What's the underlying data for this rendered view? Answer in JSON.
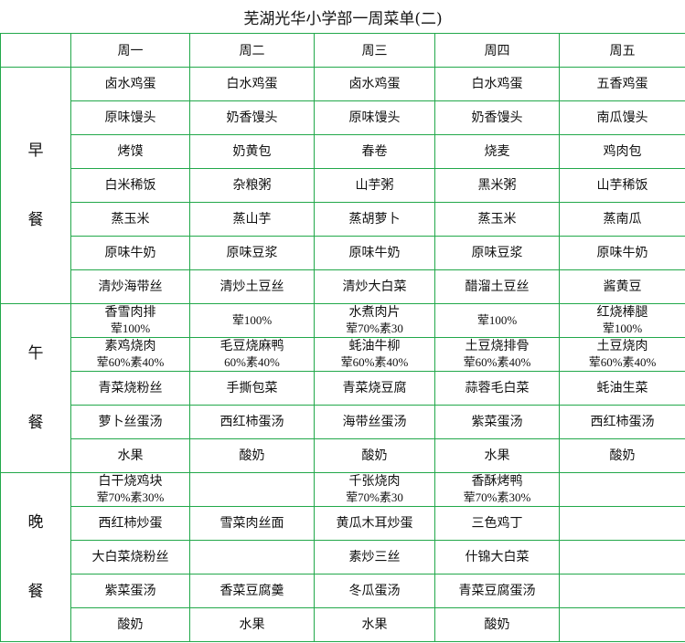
{
  "title": "芜湖光华小学部一周菜单(二)",
  "days": [
    "周一",
    "周二",
    "周三",
    "周四",
    "周五"
  ],
  "meals": [
    {
      "label1": "早",
      "label2": "餐",
      "rows": [
        [
          [
            "卤水鸡蛋"
          ],
          [
            "白水鸡蛋"
          ],
          [
            "卤水鸡蛋"
          ],
          [
            "白水鸡蛋"
          ],
          [
            "五香鸡蛋"
          ]
        ],
        [
          [
            "原味馒头"
          ],
          [
            "奶香馒头"
          ],
          [
            "原味馒头"
          ],
          [
            "奶香馒头"
          ],
          [
            "南瓜馒头"
          ]
        ],
        [
          [
            "烤馍"
          ],
          [
            "奶黄包"
          ],
          [
            "春卷"
          ],
          [
            "烧麦"
          ],
          [
            "鸡肉包"
          ]
        ],
        [
          [
            "白米稀饭"
          ],
          [
            "杂粮粥"
          ],
          [
            "山芋粥"
          ],
          [
            "黑米粥"
          ],
          [
            "山芋稀饭"
          ]
        ],
        [
          [
            "蒸玉米"
          ],
          [
            "蒸山芋"
          ],
          [
            "蒸胡萝卜"
          ],
          [
            "蒸玉米"
          ],
          [
            "蒸南瓜"
          ]
        ],
        [
          [
            "原味牛奶"
          ],
          [
            "原味豆浆"
          ],
          [
            "原味牛奶"
          ],
          [
            "原味豆浆"
          ],
          [
            "原味牛奶"
          ]
        ],
        [
          [
            "清炒海带丝"
          ],
          [
            "清炒土豆丝"
          ],
          [
            "清炒大白菜"
          ],
          [
            "醋溜土豆丝"
          ],
          [
            "酱黄豆"
          ]
        ]
      ]
    },
    {
      "label1": "午",
      "label2": "餐",
      "rows": [
        [
          [
            "香雪肉排",
            "荤100%"
          ],
          [
            "",
            "荤100%"
          ],
          [
            "水煮肉片",
            "荤70%素30"
          ],
          [
            "",
            "荤100%"
          ],
          [
            "红烧棒腿",
            "荤100%"
          ]
        ],
        [
          [
            "素鸡烧肉",
            "荤60%素40%"
          ],
          [
            "毛豆烧麻鸭",
            "60%素40%"
          ],
          [
            "蚝油牛柳",
            "荤60%素40%"
          ],
          [
            "土豆烧排骨",
            "荤60%素40%"
          ],
          [
            "土豆烧肉",
            "荤60%素40%"
          ]
        ],
        [
          [
            "青菜烧粉丝"
          ],
          [
            "手撕包菜"
          ],
          [
            "青菜烧豆腐"
          ],
          [
            "蒜蓉毛白菜"
          ],
          [
            "蚝油生菜"
          ]
        ],
        [
          [
            "萝卜丝蛋汤"
          ],
          [
            "西红柿蛋汤"
          ],
          [
            "海带丝蛋汤"
          ],
          [
            "紫菜蛋汤"
          ],
          [
            "西红柿蛋汤"
          ]
        ],
        [
          [
            "水果"
          ],
          [
            "酸奶"
          ],
          [
            "酸奶"
          ],
          [
            "水果"
          ],
          [
            "酸奶"
          ]
        ]
      ]
    },
    {
      "label1": "晚",
      "label2": "餐",
      "rows": [
        [
          [
            "白干烧鸡块",
            "荤70%素30%"
          ],
          [
            ""
          ],
          [
            "千张烧肉",
            "荤70%素30"
          ],
          [
            "香酥烤鸭",
            "荤70%素30%"
          ],
          [
            ""
          ]
        ],
        [
          [
            "西红柿炒蛋"
          ],
          [
            "雪菜肉丝面"
          ],
          [
            "黄瓜木耳炒蛋"
          ],
          [
            "三色鸡丁"
          ],
          [
            ""
          ]
        ],
        [
          [
            "大白菜烧粉丝"
          ],
          [
            ""
          ],
          [
            "素炒三丝"
          ],
          [
            "什锦大白菜"
          ],
          [
            ""
          ]
        ],
        [
          [
            "紫菜蛋汤"
          ],
          [
            "香菜豆腐羹"
          ],
          [
            "冬瓜蛋汤"
          ],
          [
            "青菜豆腐蛋汤"
          ],
          [
            ""
          ]
        ],
        [
          [
            "酸奶"
          ],
          [
            "水果"
          ],
          [
            "水果"
          ],
          [
            "酸奶"
          ],
          [
            ""
          ]
        ]
      ]
    }
  ],
  "colors": {
    "grid": "#22a84a",
    "text": "#111111"
  }
}
